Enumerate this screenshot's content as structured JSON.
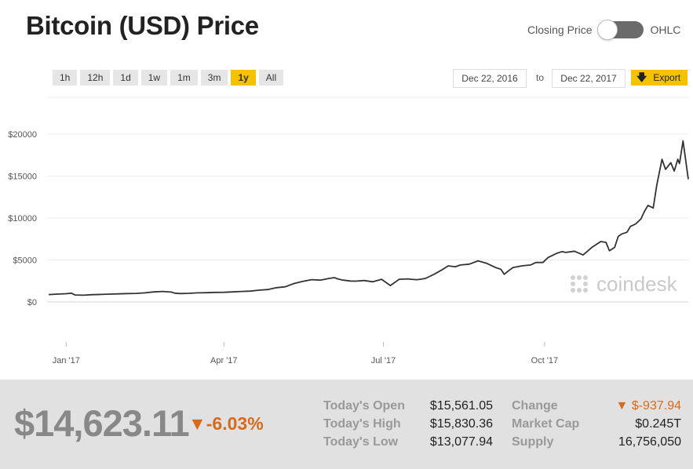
{
  "header": {
    "title": "Bitcoin (USD) Price"
  },
  "toggle": {
    "left_label": "Closing Price",
    "right_label": "OHLC"
  },
  "range_buttons": [
    "1h",
    "12h",
    "1d",
    "1w",
    "1m",
    "3m",
    "1y",
    "All"
  ],
  "active_range": "1y",
  "date_range": {
    "from": "Dec 22, 2016",
    "to_label": "to",
    "to": "Dec 22, 2017"
  },
  "export": {
    "label": "Export",
    "icon": "down-arrow-icon"
  },
  "watermark": "coindesk",
  "colors": {
    "accent": "#f5c200",
    "line": "#333333",
    "negative": "#d86a1c"
  },
  "chart_data": {
    "type": "line",
    "title": "",
    "y_ticks": [
      "$0",
      "$5000",
      "$10000",
      "$15000",
      "$20000"
    ],
    "y_tick_values": [
      0,
      5000,
      10000,
      15000,
      20000
    ],
    "x_ticks": [
      "Jan '17",
      "Apr '17",
      "Jul '17",
      "Oct '17"
    ],
    "x_tick_days": [
      10,
      100,
      191,
      283
    ],
    "ylim": [
      0,
      20000
    ],
    "grid": true,
    "series": [
      {
        "x": [
          0,
          5,
          10,
          13,
          15,
          20,
          25,
          30,
          35,
          40,
          45,
          50,
          55,
          60,
          65,
          70,
          72,
          75,
          80,
          85,
          90,
          95,
          100,
          105,
          110,
          115,
          120,
          125,
          130,
          135,
          140,
          145,
          150,
          155,
          160,
          163,
          165,
          168,
          170,
          172,
          175,
          180,
          185,
          190,
          195,
          200,
          205,
          207,
          210,
          212,
          215,
          220,
          225,
          228,
          232,
          235,
          240,
          245,
          250,
          255,
          258,
          260,
          263,
          265,
          270,
          275,
          278,
          282,
          285,
          290,
          293,
          295,
          300,
          305,
          310,
          315,
          318,
          320,
          323,
          325,
          327,
          330,
          332,
          335,
          338,
          340,
          342,
          345,
          347,
          350,
          352,
          355,
          357,
          359,
          360,
          362,
          365
        ],
        "y": [
          880,
          930,
          980,
          1050,
          830,
          800,
          870,
          900,
          930,
          960,
          1000,
          1020,
          1080,
          1200,
          1250,
          1180,
          1050,
          1000,
          1030,
          1080,
          1100,
          1140,
          1150,
          1200,
          1250,
          1290,
          1400,
          1480,
          1700,
          1800,
          2200,
          2450,
          2650,
          2600,
          2800,
          2900,
          2750,
          2600,
          2550,
          2500,
          2480,
          2550,
          2400,
          2700,
          1950,
          2700,
          2750,
          2700,
          2650,
          2700,
          2800,
          3300,
          3900,
          4300,
          4200,
          4400,
          4500,
          4900,
          4600,
          4100,
          3900,
          3300,
          3800,
          4100,
          4300,
          4400,
          4700,
          4700,
          5300,
          5800,
          6000,
          5900,
          6050,
          5600,
          6500,
          7200,
          7100,
          6100,
          6500,
          7800,
          8100,
          8300,
          9000,
          9300,
          9900,
          10800,
          11500,
          11200,
          13900,
          17000,
          15800,
          16600,
          15600,
          17000,
          16500,
          19200,
          14623
        ]
      }
    ]
  },
  "summary": {
    "price": "$14,623.11",
    "change_pct": "▼-6.03%",
    "stats": [
      {
        "label": "Today's Open",
        "value": "$15,561.05"
      },
      {
        "label": "Today's High",
        "value": "$15,830.36"
      },
      {
        "label": "Today's Low",
        "value": "$13,077.94"
      },
      {
        "label": "Change",
        "value": "▼ $-937.94"
      },
      {
        "label": "Market Cap",
        "value": "$0.245T"
      },
      {
        "label": "Supply",
        "value": "16,756,050"
      }
    ]
  }
}
